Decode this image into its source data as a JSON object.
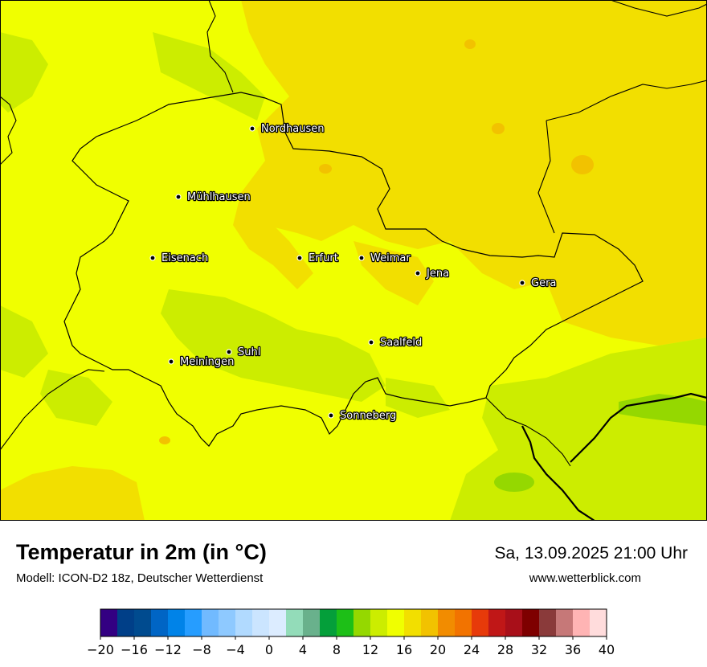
{
  "header": {
    "title": "Temperatur in 2m (in °C)",
    "subtitle": "Modell: ICON-D2 18z, Deutscher Wetterdienst",
    "datetime": "Sa, 13.09.2025 21:00 Uhr",
    "website": "www.wetterblick.com"
  },
  "map": {
    "base_color": "#f0ff00",
    "cities": [
      {
        "name": "Nordhausen"
      },
      {
        "name": "Mühlhausen"
      },
      {
        "name": "Eisenach"
      },
      {
        "name": "Erfurt"
      },
      {
        "name": "Weimar"
      },
      {
        "name": "Jena"
      },
      {
        "name": "Gera"
      },
      {
        "name": "Saalfeld"
      },
      {
        "name": "Suhl"
      },
      {
        "name": "Meiningen"
      },
      {
        "name": "Sonneberg"
      }
    ]
  },
  "legend": {
    "colors": [
      "#330082",
      "#003f88",
      "#004b8f",
      "#0065c5",
      "#0083e8",
      "#269dff",
      "#71baff",
      "#8ec9ff",
      "#b1daff",
      "#cbe5ff",
      "#dcecff",
      "#93dcb9",
      "#69b18c",
      "#049f3a",
      "#1dbf17",
      "#95d800",
      "#cced00",
      "#f0ff00",
      "#f2df00",
      "#f2c200",
      "#f28c00",
      "#f27300",
      "#e73a0a",
      "#c01717",
      "#a80f19",
      "#7e0000",
      "#8a3a3a",
      "#c67878",
      "#ffb4b4",
      "#ffdcdc"
    ],
    "ticks": [
      "−20",
      "−16",
      "−12",
      "−8",
      "−4",
      "0",
      "4",
      "8",
      "12",
      "16",
      "20",
      "24",
      "28",
      "32",
      "36",
      "40"
    ]
  }
}
